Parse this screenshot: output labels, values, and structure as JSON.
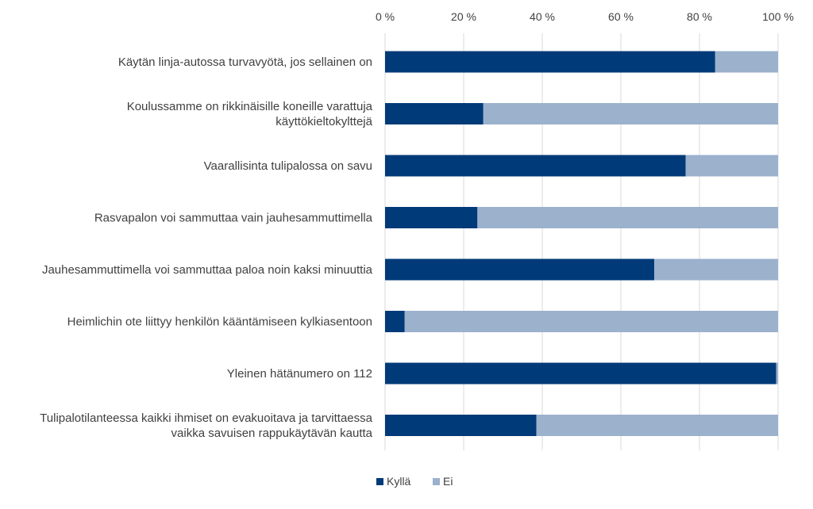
{
  "colors": {
    "kylla": "#003a78",
    "ei": "#9bb1cc",
    "grid": "#d9d9d9",
    "text": "#404040"
  },
  "chart_data": {
    "type": "bar",
    "orientation": "horizontal",
    "stacked": "percent",
    "title": "",
    "xlabel": "",
    "ylabel": "",
    "xlim": [
      0,
      100
    ],
    "x_ticks": [
      0,
      20,
      40,
      60,
      80,
      100
    ],
    "x_tick_labels": [
      "0 %",
      "20 %",
      "40 %",
      "60 %",
      "80 %",
      "100 %"
    ],
    "x_axis_position": "top",
    "grid": true,
    "legend_position": "bottom",
    "categories": [
      [
        "Käytän linja-autossa turvavyötä, jos sellainen on"
      ],
      [
        "Koulussamme on rikkinäisille koneille varattuja",
        "käyttökieltokylttejä"
      ],
      [
        "Vaarallisinta tulipalossa on savu"
      ],
      [
        "Rasvapalon voi sammuttaa vain jauhesammuttimella"
      ],
      [
        "Jauhesammuttimella voi sammuttaa paloa noin kaksi minuuttia"
      ],
      [
        "Heimlichin ote liittyy henkilön kääntämiseen kylkiasentoon"
      ],
      [
        "Yleinen hätänumero on 112"
      ],
      [
        "Tulipalotilanteessa kaikki ihmiset on evakuoitava ja tarvittaessa",
        "vaikka savuisen rappukäytävän kautta"
      ]
    ],
    "series": [
      {
        "name": "Kyllä",
        "values": [
          84,
          25,
          76.5,
          23.5,
          68.5,
          5,
          99.5,
          38.5
        ]
      },
      {
        "name": "Ei",
        "values": [
          16,
          75,
          23.5,
          76.5,
          31.5,
          95,
          0.5,
          61.5
        ]
      }
    ]
  }
}
